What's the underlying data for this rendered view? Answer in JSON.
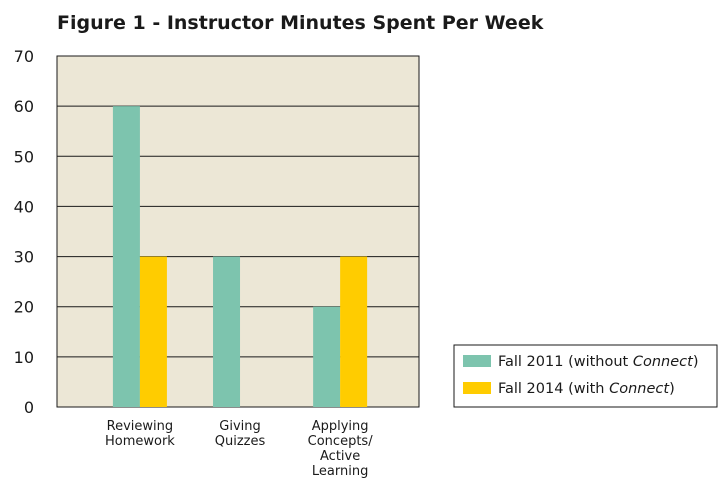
{
  "chart_data": {
    "type": "bar",
    "title": "Figure 1 - Instructor Minutes Spent Per Week",
    "xlabel": "",
    "ylabel": "",
    "ylim": [
      0,
      70
    ],
    "yticks": [
      "0",
      "10",
      "20",
      "30",
      "40",
      "50",
      "60",
      "70"
    ],
    "grid": true,
    "legend_position": "bottom-right",
    "categories": [
      [
        "Reviewing",
        "Homework"
      ],
      [
        "Giving",
        "Quizzes"
      ],
      [
        "Applying",
        "Concepts/",
        "Active",
        "Learning"
      ]
    ],
    "series": [
      {
        "name": "Fall 2011 (without Connect)",
        "name_parts": [
          "Fall 2011 (without ",
          "Connect",
          ")"
        ],
        "color": "#7dc4ae",
        "values": [
          60,
          30,
          20
        ]
      },
      {
        "name": "Fall 2014 (with Connect)",
        "name_parts": [
          "Fall 2014 (with ",
          "Connect",
          ")"
        ],
        "color": "#ffcc00",
        "values": [
          30,
          0,
          30
        ]
      }
    ],
    "plot_background": "#ece7d6"
  }
}
